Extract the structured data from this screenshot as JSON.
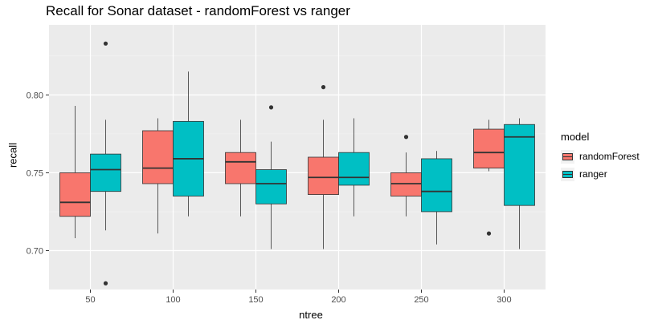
{
  "chart_data": {
    "type": "boxplot",
    "title": "Recall for Sonar dataset - randomForest vs ranger",
    "xlabel": "ntree",
    "ylabel": "recall",
    "ylim": [
      0.675,
      0.845
    ],
    "yticks": [
      0.7,
      0.75,
      0.8
    ],
    "ytick_labels": [
      "0.70",
      "0.75",
      "0.80"
    ],
    "categories": [
      "50",
      "100",
      "150",
      "200",
      "250",
      "300"
    ],
    "legend_title": "model",
    "legend_position": "right",
    "grid": true,
    "series": [
      {
        "name": "randomForest",
        "color": "#F8766D",
        "boxes": [
          {
            "q1": 0.722,
            "median": 0.731,
            "q3": 0.75,
            "lower": 0.708,
            "upper": 0.793,
            "outliers": []
          },
          {
            "q1": 0.743,
            "median": 0.753,
            "q3": 0.777,
            "lower": 0.711,
            "upper": 0.785,
            "outliers": []
          },
          {
            "q1": 0.743,
            "median": 0.757,
            "q3": 0.763,
            "lower": 0.722,
            "upper": 0.784,
            "outliers": []
          },
          {
            "q1": 0.736,
            "median": 0.747,
            "q3": 0.76,
            "lower": 0.701,
            "upper": 0.784,
            "outliers": [
              0.805
            ]
          },
          {
            "q1": 0.735,
            "median": 0.743,
            "q3": 0.75,
            "lower": 0.722,
            "upper": 0.763,
            "outliers": [
              0.773
            ]
          },
          {
            "q1": 0.753,
            "median": 0.763,
            "q3": 0.778,
            "lower": 0.751,
            "upper": 0.784,
            "outliers": [
              0.711
            ]
          }
        ]
      },
      {
        "name": "ranger",
        "color": "#00BFC4",
        "boxes": [
          {
            "q1": 0.738,
            "median": 0.752,
            "q3": 0.762,
            "lower": 0.713,
            "upper": 0.784,
            "outliers": [
              0.833,
              0.679
            ]
          },
          {
            "q1": 0.735,
            "median": 0.759,
            "q3": 0.783,
            "lower": 0.722,
            "upper": 0.815,
            "outliers": []
          },
          {
            "q1": 0.73,
            "median": 0.743,
            "q3": 0.752,
            "lower": 0.701,
            "upper": 0.77,
            "outliers": [
              0.792
            ]
          },
          {
            "q1": 0.742,
            "median": 0.747,
            "q3": 0.763,
            "lower": 0.722,
            "upper": 0.785,
            "outliers": []
          },
          {
            "q1": 0.725,
            "median": 0.738,
            "q3": 0.759,
            "lower": 0.704,
            "upper": 0.764,
            "outliers": []
          },
          {
            "q1": 0.729,
            "median": 0.773,
            "q3": 0.781,
            "lower": 0.701,
            "upper": 0.785,
            "outliers": []
          }
        ]
      }
    ]
  }
}
